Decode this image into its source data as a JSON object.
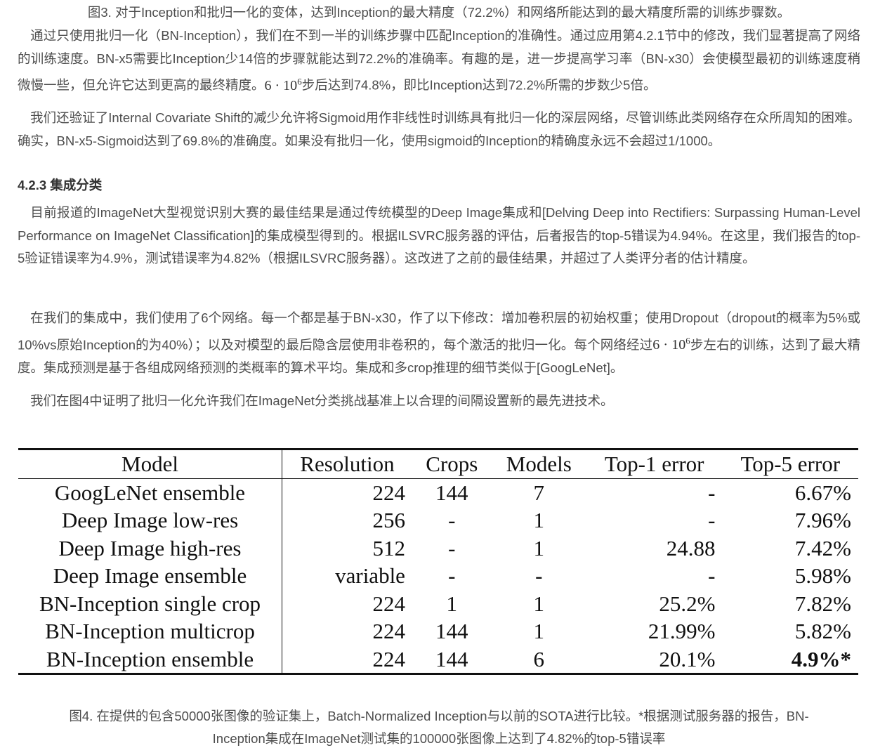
{
  "fig3_caption": "图3. 对于Inception和批归一化的变体，达到Inception的最大精度（72.2%）和网络所能达到的最大精度所需的训练步骤数。",
  "p1": {
    "text_a": "通过只使用批归一化（BN-Inception），我们在不到一半的训练步骤中匹配Inception的准确性。通过应用第4.2.1节中的修改，我们显著提高了网络的训练速度。BN-x5需要比Inception少14倍的步骤就能达到72.2%的准确率。有趣的是，进一步提高学习率（BN-x30）会使模型最初的训练速度稍微慢一些，但允许它达到更高的最终精度。",
    "math_base": "6 · 10",
    "math_exp": "6",
    "text_b": "步后达到74.8%，即比Inception达到72.2%所需的步数少5倍。"
  },
  "p2": "我们还验证了Internal Covariate Shift的减少允许将Sigmoid用作非线性时训练具有批归一化的深层网络，尽管训练此类网络存在众所周知的困难。确实，BN-x5-Sigmoid达到了69.8%的准确度。如果没有批归一化，使用sigmoid的Inception的精确度永远不会超过1/1000。",
  "section_heading": "4.2.3 集成分类",
  "p3": "目前报道的ImageNet大型视觉识别大赛的最佳结果是通过传统模型的Deep Image集成和[Delving Deep into Rectifiers: Surpassing Human-Level Performance on ImageNet Classification]的集成模型得到的。根据ILSVRC服务器的评估，后者报告的top-5错误为4.94%。在这里，我们报告的top-5验证错误率为4.9%，测试错误率为4.82%（根据ILSVRC服务器）。这改进了之前的最佳结果，并超过了人类评分者的估计精度。",
  "p4": {
    "text_a": "在我们的集成中，我们使用了6个网络。每一个都是基于BN-x30，作了以下修改：增加卷积层的初始权重；使用Dropout（dropout的概率为5%或10%vs原始Inception的为40%）；以及对模型的最后隐含层使用非卷积的，每个激活的批归一化。每个网络经过",
    "math_base": "6 · 10",
    "math_exp": "6",
    "text_b": "步左右的训练，达到了最大精度。集成预测是基于各组成网络预测的类概率的算术平均。集成和多crop推理的细节类似于[GoogLeNet]。"
  },
  "p5": "我们在图4中证明了批归一化允许我们在ImageNet分类挑战基准上以合理的间隔设置新的最先进技术。",
  "table": {
    "headers": [
      "Model",
      "Resolution",
      "Crops",
      "Models",
      "Top-1 error",
      "Top-5 error"
    ],
    "rows": [
      [
        "GoogLeNet ensemble",
        "224",
        "144",
        "7",
        "-",
        "6.67%"
      ],
      [
        "Deep Image low-res",
        "256",
        "-",
        "1",
        "-",
        "7.96%"
      ],
      [
        "Deep Image high-res",
        "512",
        "-",
        "1",
        "24.88",
        "7.42%"
      ],
      [
        "Deep Image ensemble",
        "variable",
        "-",
        "-",
        "-",
        "5.98%"
      ],
      [
        "BN-Inception single crop",
        "224",
        "1",
        "1",
        "25.2%",
        "7.82%"
      ],
      [
        "BN-Inception multicrop",
        "224",
        "144",
        "1",
        "21.99%",
        "5.82%"
      ],
      [
        "BN-Inception ensemble",
        "224",
        "144",
        "6",
        "20.1%",
        "4.9%*"
      ]
    ]
  },
  "fig4_caption_line1": "图4. 在提供的包含50000张图像的验证集上，Batch-Normalized Inception与以前的SOTA进行比较。*根据测试服务器的报告，BN-",
  "fig4_caption_line2": "Inception集成在ImageNet测试集的100000张图像上达到了4.82%的top-5错误率"
}
